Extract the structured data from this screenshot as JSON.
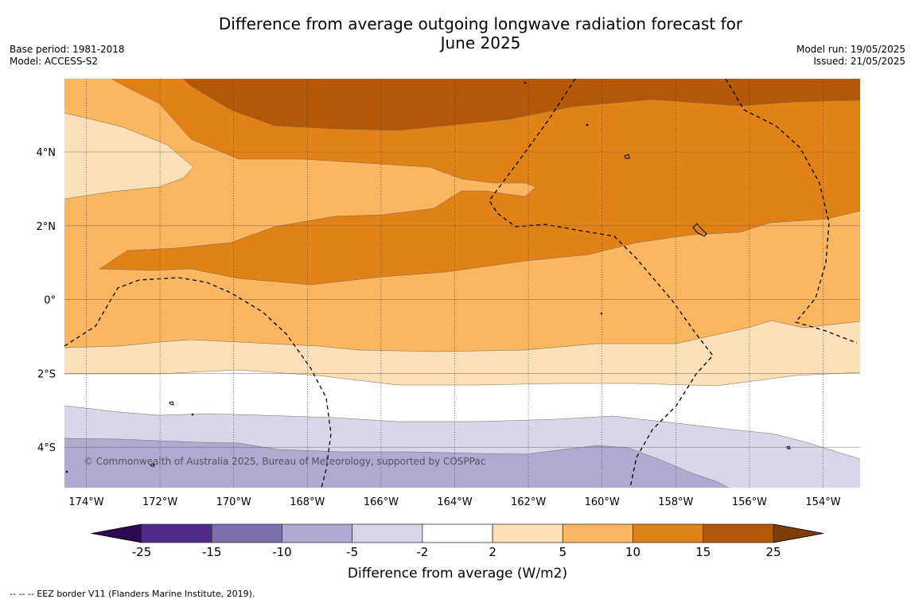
{
  "title_line1": "Difference from average outgoing longwave radiation forecast for",
  "title_line2": "June 2025",
  "meta_left": {
    "base_period": "Base period: 1981-2018",
    "model": "Model: ACCESS-S2"
  },
  "meta_right": {
    "model_run": "Model run: 19/05/2025",
    "issued": "Issued: 21/05/2025"
  },
  "copyright": "© Commonwealth of Australia 2025, Bureau of Meteorology, supported by COSPPac",
  "footnote": "--  --  -- EEZ border V11 (Flanders Marine Institute, 2019).",
  "map": {
    "lon_labels": [
      "174°W",
      "172°W",
      "170°W",
      "168°W",
      "166°W",
      "164°W",
      "162°W",
      "160°W",
      "158°W",
      "156°W",
      "154°W"
    ],
    "lat_labels": [
      "4°N",
      "2°N",
      "0°",
      "2°S",
      "4°S"
    ]
  },
  "colorbar": {
    "label": "Difference from average (W/m2)",
    "ticks": [
      "-25",
      "-15",
      "-10",
      "-5",
      "-2",
      "2",
      "5",
      "10",
      "15",
      "25"
    ],
    "colors": [
      "#4f2a88",
      "#7d6eae",
      "#b0a9d1",
      "#d8d7e9",
      "#ffffff",
      "#fde0b7",
      "#fbb661",
      "#e08215",
      "#b35807"
    ],
    "under_color": "#2d0a4f",
    "over_color": "#7f3b08"
  }
}
